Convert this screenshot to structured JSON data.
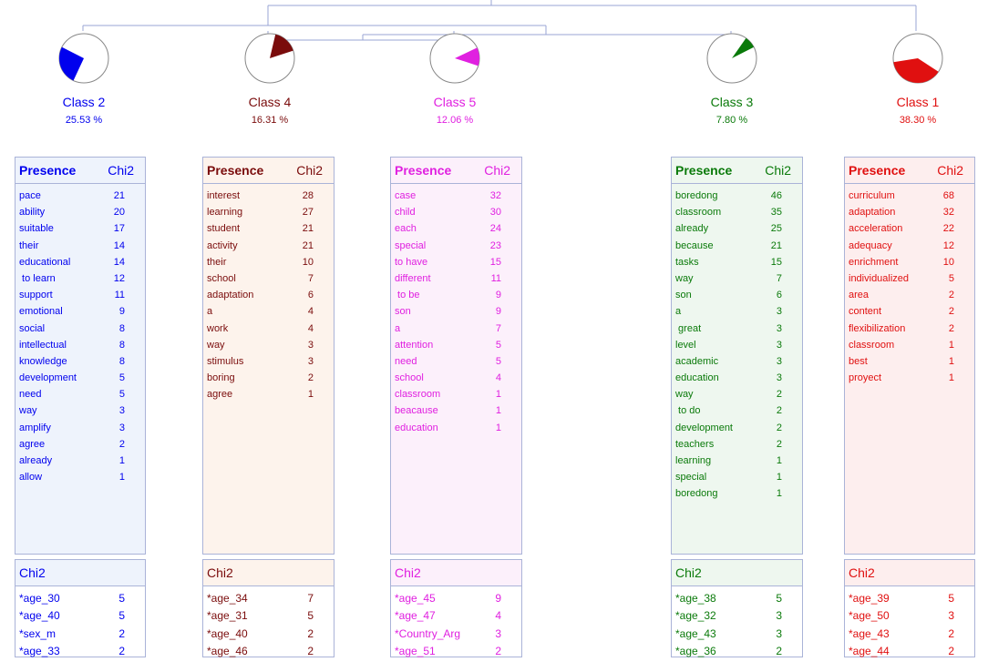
{
  "classes": [
    {
      "name": "Class  2",
      "percent": "25.53 %",
      "color": "#0000ee",
      "bg": "#eef3fc",
      "share": 0.2553,
      "presence_label": "Presence",
      "chi2_label": "Chi2",
      "words": [
        {
          "term": "pace",
          "chi2": "21"
        },
        {
          "term": "ability",
          "chi2": "20"
        },
        {
          "term": "suitable",
          "chi2": "17"
        },
        {
          "term": "their",
          "chi2": "14"
        },
        {
          "term": "educational",
          "chi2": "14"
        },
        {
          "term": " to learn",
          "chi2": "12"
        },
        {
          "term": "support",
          "chi2": "11"
        },
        {
          "term": "emotional",
          "chi2": "9"
        },
        {
          "term": "social",
          "chi2": "8"
        },
        {
          "term": "intellectual",
          "chi2": "8"
        },
        {
          "term": "knowledge",
          "chi2": "8"
        },
        {
          "term": "development",
          "chi2": "5"
        },
        {
          "term": "need",
          "chi2": "5"
        },
        {
          "term": "way",
          "chi2": "3"
        },
        {
          "term": "amplify",
          "chi2": "3"
        },
        {
          "term": "agree",
          "chi2": "2"
        },
        {
          "term": "already",
          "chi2": "1"
        },
        {
          "term": "allow",
          "chi2": "1"
        }
      ],
      "age_header": "Chi2",
      "ages": [
        {
          "term": "*age_30",
          "chi2": "5"
        },
        {
          "term": "*age_40",
          "chi2": "5"
        },
        {
          "term": "*sex_m",
          "chi2": "2"
        },
        {
          "term": "*age_33",
          "chi2": "2"
        }
      ]
    },
    {
      "name": "Class  4",
      "percent": "16.31 %",
      "color": "#7a0c0c",
      "bg": "#fdf3ec",
      "share": 0.1631,
      "presence_label": "Presence",
      "chi2_label": "Chi2",
      "words": [
        {
          "term": "interest",
          "chi2": "28"
        },
        {
          "term": "learning",
          "chi2": "27"
        },
        {
          "term": "student",
          "chi2": "21"
        },
        {
          "term": "activity",
          "chi2": "21"
        },
        {
          "term": "their",
          "chi2": "10"
        },
        {
          "term": "school",
          "chi2": "7"
        },
        {
          "term": "adaptation",
          "chi2": "6"
        },
        {
          "term": "a",
          "chi2": "4"
        },
        {
          "term": "work",
          "chi2": "4"
        },
        {
          "term": "way",
          "chi2": "3"
        },
        {
          "term": "stimulus",
          "chi2": "3"
        },
        {
          "term": "boring",
          "chi2": "2"
        },
        {
          "term": "agree",
          "chi2": "1"
        }
      ],
      "age_header": "Chi2",
      "ages": [
        {
          "term": "*age_34",
          "chi2": "7"
        },
        {
          "term": "*age_31",
          "chi2": "5"
        },
        {
          "term": "*age_40",
          "chi2": "2"
        },
        {
          "term": "*age_46",
          "chi2": "2"
        }
      ]
    },
    {
      "name": "Class  5",
      "percent": "12.06 %",
      "color": "#e020e0",
      "bg": "#fcf0fb",
      "share": 0.1206,
      "presence_label": "Presence",
      "chi2_label": "Chi2",
      "words": [
        {
          "term": "case",
          "chi2": "32"
        },
        {
          "term": "child",
          "chi2": "30"
        },
        {
          "term": "each",
          "chi2": "24"
        },
        {
          "term": "special",
          "chi2": "23"
        },
        {
          "term": "to have",
          "chi2": "15"
        },
        {
          "term": "different",
          "chi2": "11"
        },
        {
          "term": " to be",
          "chi2": "9"
        },
        {
          "term": "son",
          "chi2": "9"
        },
        {
          "term": "a",
          "chi2": "7"
        },
        {
          "term": "attention",
          "chi2": "5"
        },
        {
          "term": "need",
          "chi2": "5"
        },
        {
          "term": "school",
          "chi2": "4"
        },
        {
          "term": "classroom",
          "chi2": "1"
        },
        {
          "term": "beacause",
          "chi2": "1"
        },
        {
          "term": "education",
          "chi2": "1"
        }
      ],
      "age_header": "Chi2",
      "ages": [
        {
          "term": "*age_45",
          "chi2": "9"
        },
        {
          "term": "*age_47",
          "chi2": "4"
        },
        {
          "term": "*Country_Arg",
          "chi2": "3"
        },
        {
          "term": "*age_51",
          "chi2": "2"
        }
      ]
    },
    {
      "name": "Class  3",
      "percent": "7.80 %",
      "color": "#0a7a0a",
      "bg": "#eef7ef",
      "share": 0.078,
      "presence_label": "Presence",
      "chi2_label": "Chi2",
      "words": [
        {
          "term": "boredong",
          "chi2": "46"
        },
        {
          "term": "classroom",
          "chi2": "35"
        },
        {
          "term": "already",
          "chi2": "25"
        },
        {
          "term": "because",
          "chi2": "21"
        },
        {
          "term": "tasks",
          "chi2": "15"
        },
        {
          "term": "way",
          "chi2": "7"
        },
        {
          "term": "son",
          "chi2": "6"
        },
        {
          "term": "a",
          "chi2": "3"
        },
        {
          "term": " great",
          "chi2": "3"
        },
        {
          "term": "level",
          "chi2": "3"
        },
        {
          "term": "academic",
          "chi2": "3"
        },
        {
          "term": "education",
          "chi2": "3"
        },
        {
          "term": "way",
          "chi2": "2"
        },
        {
          "term": " to do",
          "chi2": "2"
        },
        {
          "term": "development",
          "chi2": "2"
        },
        {
          "term": "teachers",
          "chi2": "2"
        },
        {
          "term": "learning",
          "chi2": "1"
        },
        {
          "term": "special",
          "chi2": "1"
        },
        {
          "term": "boredong",
          "chi2": "1"
        }
      ],
      "age_header": "Chi2",
      "ages": [
        {
          "term": "*age_38",
          "chi2": "5"
        },
        {
          "term": "*age_32",
          "chi2": "3"
        },
        {
          "term": "*age_43",
          "chi2": "3"
        },
        {
          "term": "*age_36",
          "chi2": "2"
        }
      ]
    },
    {
      "name": "Class  1",
      "percent": "38.30 %",
      "color": "#e01010",
      "bg": "#fdeeee",
      "share": 0.383,
      "presence_label": "Presence",
      "chi2_label": "Chi2",
      "words": [
        {
          "term": "curriculum",
          "chi2": "68"
        },
        {
          "term": "adaptation",
          "chi2": "32"
        },
        {
          "term": "acceleration",
          "chi2": "22"
        },
        {
          "term": "adequacy",
          "chi2": "12"
        },
        {
          "term": "enrichment",
          "chi2": "10"
        },
        {
          "term": "individualized",
          "chi2": "5"
        },
        {
          "term": "area",
          "chi2": "2"
        },
        {
          "term": "content",
          "chi2": "2"
        },
        {
          "term": "flexibilization",
          "chi2": "2"
        },
        {
          "term": "classroom",
          "chi2": "1"
        },
        {
          "term": "best",
          "chi2": "1"
        },
        {
          "term": "proyect",
          "chi2": "1"
        }
      ],
      "age_header": "Chi2",
      "ages": [
        {
          "term": "*age_39",
          "chi2": "5"
        },
        {
          "term": "*age_50",
          "chi2": "3"
        },
        {
          "term": "*age_43",
          "chi2": "2"
        },
        {
          "term": "*age_44",
          "chi2": "2"
        }
      ]
    }
  ]
}
